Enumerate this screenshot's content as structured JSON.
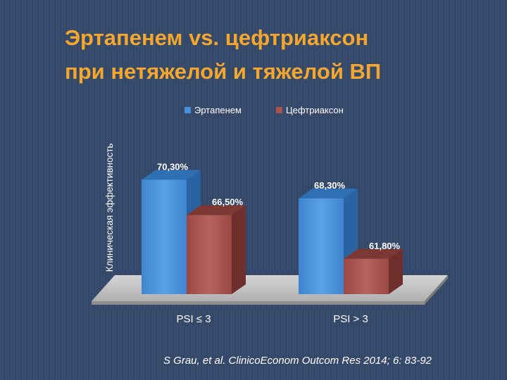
{
  "title_lines": [
    "Эртапенем vs. цефтриаксон",
    "при нетяжелой и тяжелой ВП"
  ],
  "citation": "S Grau, et al. ClinicoEconom Outcom Res 2014; 6: 83-92",
  "colors": {
    "title": "#f4a72c",
    "series_1": "#4a90d9",
    "series_2": "#a8524d",
    "floor": "#c4c4c4"
  },
  "chart_data": {
    "type": "bar",
    "title": "",
    "xlabel": "",
    "ylabel": "Клиническая эффективность",
    "categories": [
      "PSI ≤ 3",
      "PSI > 3"
    ],
    "series": [
      {
        "name": "Эртапенем",
        "values": [
          70.3,
          68.3
        ],
        "labels": [
          "70,30%",
          "68,30%"
        ]
      },
      {
        "name": "Цефтриаксон",
        "values": [
          66.5,
          61.8
        ],
        "labels": [
          "66,50%",
          "61,80%"
        ]
      }
    ],
    "ylim": [
      58,
      72
    ],
    "legend": "top",
    "grid": false,
    "three_d": true
  }
}
